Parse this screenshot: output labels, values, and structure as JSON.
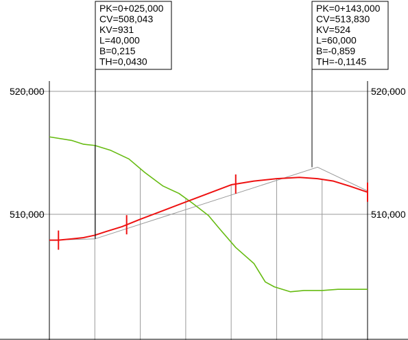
{
  "chart_data": {
    "type": "line",
    "title": "",
    "xlabel": "",
    "ylabel": "",
    "xlim": [
      5,
      145
    ],
    "ylim": [
      504,
      520
    ],
    "y_ticks": [
      "520,000",
      "510,000"
    ],
    "grid": true,
    "series": [
      {
        "key": "terrain",
        "color": "#66bb11",
        "x": [
          5,
          15,
          20,
          25,
          32,
          40,
          47,
          55,
          62,
          68,
          75,
          80,
          87,
          95,
          100,
          104,
          111,
          117,
          125,
          132,
          138,
          145
        ],
        "values": [
          516.3,
          516.0,
          515.7,
          515.6,
          515.2,
          514.5,
          513.4,
          512.3,
          511.7,
          510.9,
          509.9,
          508.8,
          507.3,
          506.0,
          504.5,
          504.1,
          503.7,
          503.8,
          503.8,
          503.9,
          503.9,
          503.9
        ]
      },
      {
        "key": "grade_line",
        "color": "#ee1111",
        "x": [
          5,
          9,
          15,
          20,
          25,
          30,
          37,
          45,
          55,
          65,
          75,
          85,
          95,
          105,
          115,
          123,
          130,
          137,
          145
        ],
        "values": [
          507.9,
          507.9,
          508.0,
          508.1,
          508.3,
          508.6,
          509.0,
          509.6,
          510.3,
          511.0,
          511.7,
          512.4,
          512.7,
          512.9,
          513.0,
          512.9,
          512.7,
          512.3,
          511.8
        ]
      }
    ],
    "tangent_line": {
      "color": "#999999",
      "x": [
        5,
        25,
        123,
        145
      ],
      "values": [
        507.9,
        508.0,
        513.83,
        511.9
      ]
    },
    "tick_marks_x": [
      9,
      39,
      87,
      145
    ],
    "grid_x": [
      5,
      25,
      45,
      65,
      85,
      105,
      125,
      145
    ],
    "vertical_curves": [
      {
        "pk_x": 25,
        "lines": [
          "PK=0+025,000",
          "CV=508,043",
          "KV=931",
          "L=40,000",
          "B=0,215",
          "TH=0,0430"
        ]
      },
      {
        "pk_x": 123,
        "lines": [
          "PK=0+143,000",
          "CV=513,830",
          "KV=524",
          "L=60,000",
          "B=-0,859",
          "TH=-0,1145"
        ]
      }
    ],
    "colors": {
      "axis": "#000000",
      "grid": "#999999",
      "box": "#000000"
    }
  }
}
